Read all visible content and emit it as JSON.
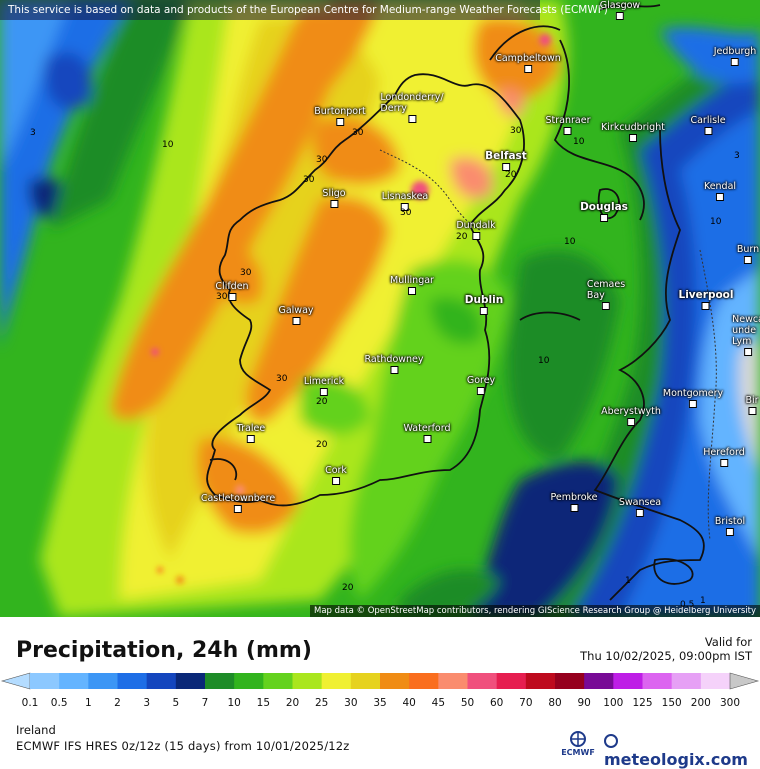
{
  "header": {
    "notice": "This service is based on data and products of the European Centre for Medium-range Weather Forecasts (ECMWF)"
  },
  "map": {
    "attribution": "Map data © OpenStreetMap contributors, rendering GIScience Research Group @ Heidelberg University",
    "cities": [
      {
        "name": "Glasgow",
        "label": "Glasgow"
      },
      {
        "name": "Jedburgh",
        "label": "Jedburgh"
      },
      {
        "name": "Campbeltown",
        "label": "Campbeltown"
      },
      {
        "name": "Londonderry",
        "label": "Londonderry/\nDerry"
      },
      {
        "name": "Burtonport",
        "label": "Burtonport"
      },
      {
        "name": "Stranraer",
        "label": "Stranraer"
      },
      {
        "name": "Kirkcudbright",
        "label": "Kirkcudbright"
      },
      {
        "name": "Carlisle",
        "label": "Carlisle"
      },
      {
        "name": "Belfast",
        "label": "Belfast"
      },
      {
        "name": "Kendal",
        "label": "Kendal"
      },
      {
        "name": "Lisnaskea",
        "label": "Lisnaskea"
      },
      {
        "name": "Sligo",
        "label": "Sligo"
      },
      {
        "name": "Douglas",
        "label": "Douglas"
      },
      {
        "name": "Dundalk",
        "label": "Dundalk"
      },
      {
        "name": "Burnley",
        "label": "Burn"
      },
      {
        "name": "Clifden",
        "label": "Clifden"
      },
      {
        "name": "Mullingar",
        "label": "Mullingar"
      },
      {
        "name": "Cemaes Bay",
        "label": "Cemaes\nBay"
      },
      {
        "name": "Liverpool",
        "label": "Liverpool"
      },
      {
        "name": "Dublin",
        "label": "Dublin"
      },
      {
        "name": "Galway",
        "label": "Galway"
      },
      {
        "name": "Newcastle-under-Lyme",
        "label": "Newca\nunde\nLym"
      },
      {
        "name": "Rathdowney",
        "label": "Rathdowney"
      },
      {
        "name": "Limerick",
        "label": "Limerick"
      },
      {
        "name": "Gorey",
        "label": "Gorey"
      },
      {
        "name": "Montgomery",
        "label": "Montgomery"
      },
      {
        "name": "Aberystwyth",
        "label": "Aberystwyth"
      },
      {
        "name": "Birmingham",
        "label": "Bir"
      },
      {
        "name": "Tralee",
        "label": "Tralee"
      },
      {
        "name": "Waterford",
        "label": "Waterford"
      },
      {
        "name": "Hereford",
        "label": "Hereford"
      },
      {
        "name": "Cork",
        "label": "Cork"
      },
      {
        "name": "Castletownbere",
        "label": "Castletownbere"
      },
      {
        "name": "Pembroke",
        "label": "Pembroke"
      },
      {
        "name": "Swansea",
        "label": "Swansea"
      },
      {
        "name": "Bristol",
        "label": "Bristol"
      }
    ],
    "contour_labels": [
      "3",
      "10",
      "30",
      "30",
      "30",
      "30",
      "30",
      "30",
      "30",
      "20",
      "10",
      "10",
      "20",
      "20",
      "20",
      "30",
      "10",
      "3",
      "10",
      "20",
      "1",
      "1",
      "0.5"
    ]
  },
  "legend": {
    "title": "Precipitation, 24h (mm)",
    "valid_label": "Valid for",
    "valid_time": "Thu 10/02/2025, 09:00pm IST",
    "ticks": [
      "0.1",
      "0.5",
      "1",
      "2",
      "3",
      "5",
      "7",
      "10",
      "15",
      "20",
      "25",
      "30",
      "35",
      "40",
      "45",
      "50",
      "60",
      "70",
      "80",
      "90",
      "100",
      "125",
      "150",
      "200",
      "300"
    ],
    "colors": [
      "#b4dcff",
      "#8cc8ff",
      "#64b4ff",
      "#3c96f5",
      "#1e6ee6",
      "#1446be",
      "#0a2878",
      "#1e8c28",
      "#32b41e",
      "#64d21e",
      "#aae61e",
      "#f0f032",
      "#e6d21e",
      "#f08c14",
      "#fa6e1e",
      "#fa8c6e",
      "#f0507d",
      "#e61e50",
      "#be0a1e",
      "#96001e",
      "#780a96",
      "#be1ee6",
      "#dc64f0",
      "#e6a0f5",
      "#f5d2fa",
      "#c8c8c8"
    ]
  },
  "footer": {
    "region": "Ireland",
    "model": "ECMWF IFS HRES 0z/12z (15 days) from 10/01/2025/12z",
    "ecmwf_label": "ECMWF",
    "brand": "meteologix.com"
  }
}
